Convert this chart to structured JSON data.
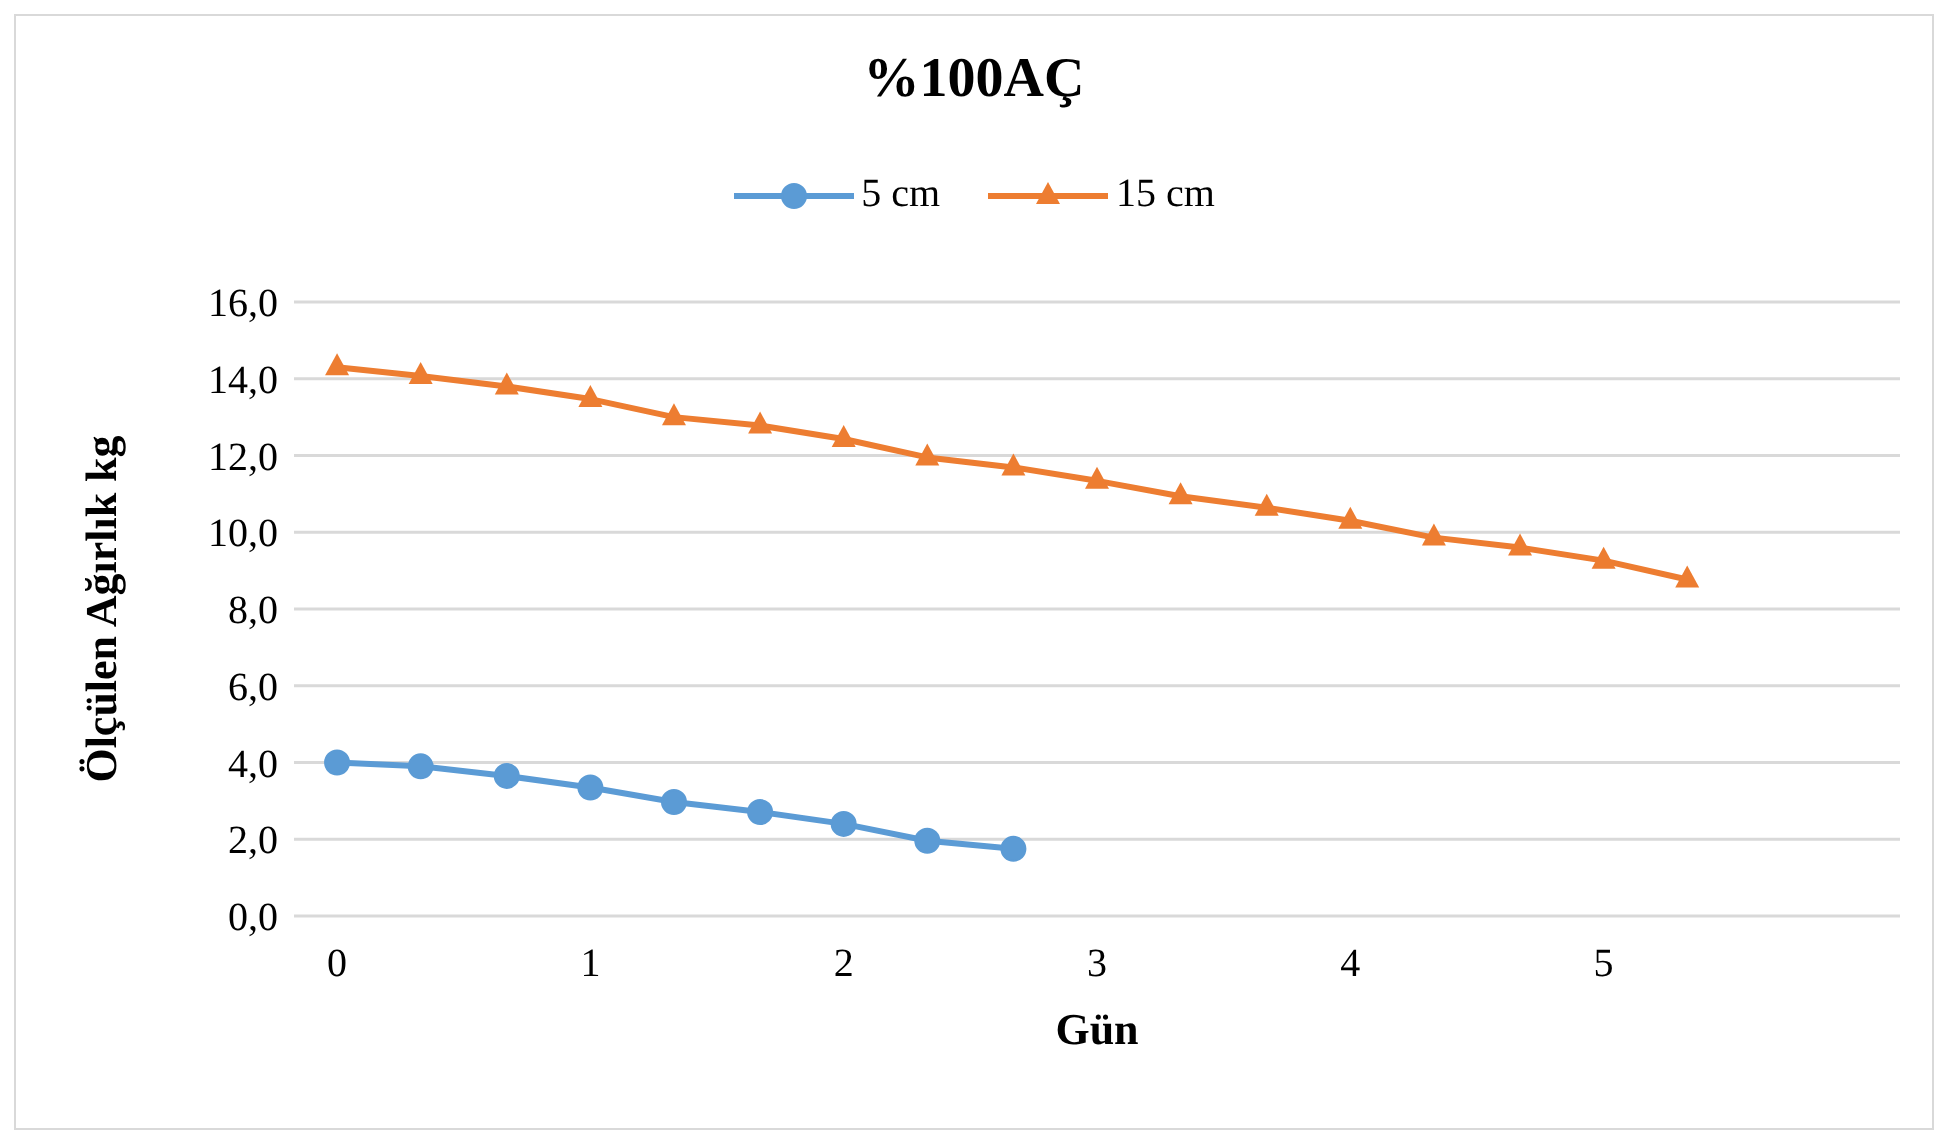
{
  "chart_data": {
    "type": "line",
    "title": "%100AÇ",
    "xlabel": "Gün",
    "ylabel": "Ölçülen Ağırlık kg",
    "xlim": [
      -0.17,
      6.17
    ],
    "xticks": [
      0,
      1,
      2,
      3,
      4,
      5
    ],
    "ylim": [
      0,
      16
    ],
    "yticks": [
      {
        "value": 0,
        "label": "0,0"
      },
      {
        "value": 2,
        "label": "2,0"
      },
      {
        "value": 4,
        "label": "4,0"
      },
      {
        "value": 6,
        "label": "6,0"
      },
      {
        "value": 8,
        "label": "8,0"
      },
      {
        "value": 10,
        "label": "10,0"
      },
      {
        "value": 12,
        "label": "12,0"
      },
      {
        "value": 14,
        "label": "14,0"
      },
      {
        "value": 16,
        "label": "16,0"
      }
    ],
    "grid": "y",
    "legend": "top",
    "line_style": "solid",
    "series": [
      {
        "name": "5 cm",
        "color": "#5b9bd5",
        "marker": "circle",
        "x": [
          0,
          0.33,
          0.67,
          1,
          1.33,
          1.67,
          2,
          2.33,
          2.67
        ],
        "values": [
          4.0,
          3.9,
          3.65,
          3.35,
          2.97,
          2.71,
          2.4,
          1.96,
          1.75
        ]
      },
      {
        "name": "15 cm",
        "color": "#ed7d31",
        "marker": "triangle",
        "x": [
          0,
          0.33,
          0.67,
          1,
          1.33,
          1.67,
          2,
          2.33,
          2.67,
          3,
          3.33,
          3.67,
          4,
          4.33,
          4.67,
          5,
          5.33
        ],
        "values": [
          14.3,
          14.07,
          13.8,
          13.47,
          13.0,
          12.78,
          12.43,
          11.95,
          11.69,
          11.34,
          10.94,
          10.64,
          10.3,
          9.86,
          9.6,
          9.26,
          8.77
        ]
      }
    ]
  }
}
